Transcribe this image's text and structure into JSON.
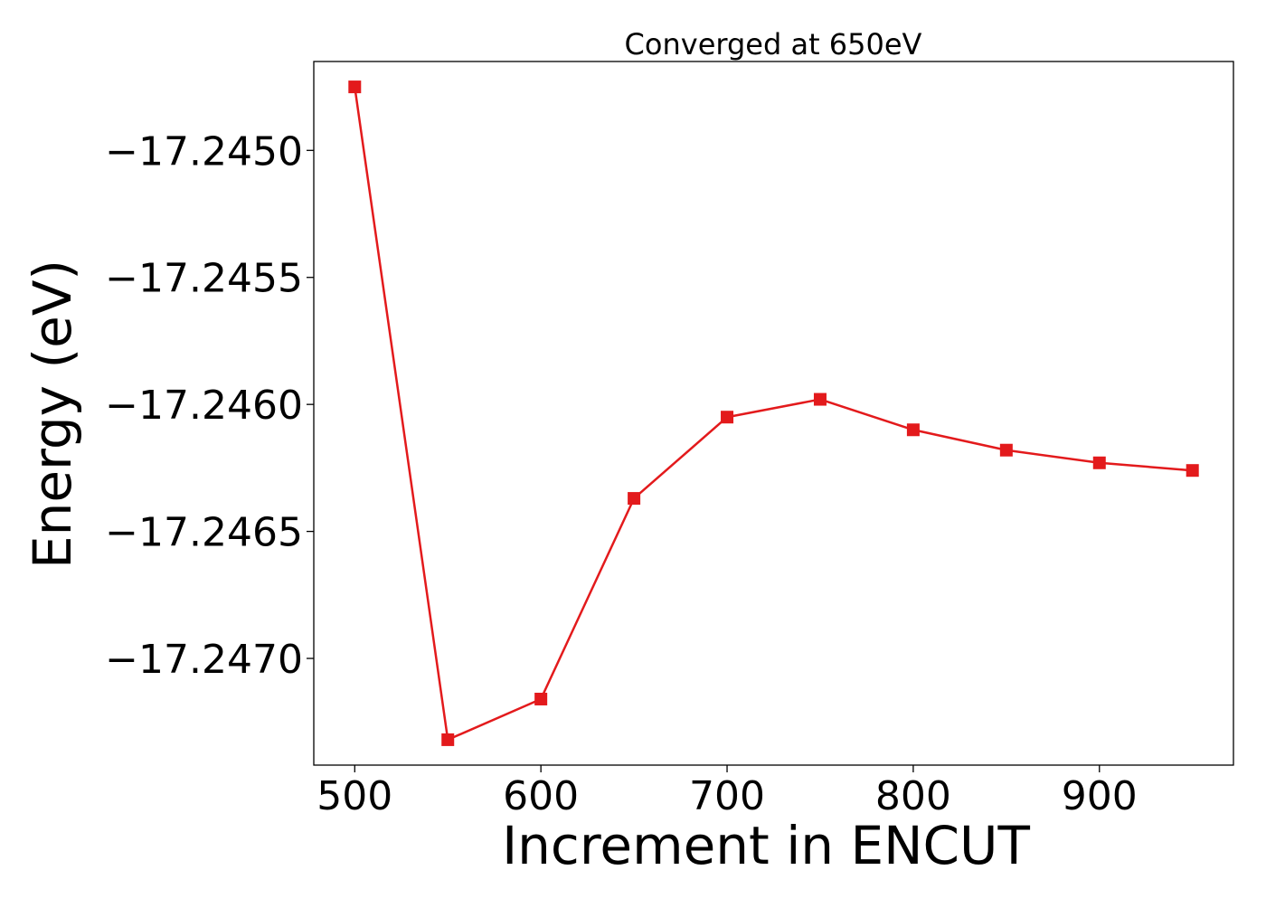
{
  "chart_data": {
    "type": "line",
    "title": "Converged at 650eV",
    "xlabel": "Increment in ENCUT",
    "ylabel": "Energy (eV)",
    "xlim": [
      478,
      972
    ],
    "ylim": [
      -17.24742,
      -17.24465
    ],
    "x_ticks": [
      500,
      600,
      700,
      800,
      900
    ],
    "x_tick_labels": [
      "500",
      "600",
      "700",
      "800",
      "900"
    ],
    "y_ticks": [
      -17.245,
      -17.2455,
      -17.246,
      -17.2465,
      -17.247
    ],
    "y_tick_labels": [
      "−17.2450",
      "−17.2455",
      "−17.2460",
      "−17.2465",
      "−17.2470"
    ],
    "grid": false,
    "series": [
      {
        "color": "#e31a1c",
        "marker": "square",
        "x": [
          500,
          550,
          600,
          650,
          700,
          750,
          800,
          850,
          900,
          950
        ],
        "y": [
          -17.24475,
          -17.24732,
          -17.24716,
          -17.24637,
          -17.24605,
          -17.24598,
          -17.2461,
          -17.24618,
          -17.24623,
          -17.24626
        ]
      }
    ]
  }
}
